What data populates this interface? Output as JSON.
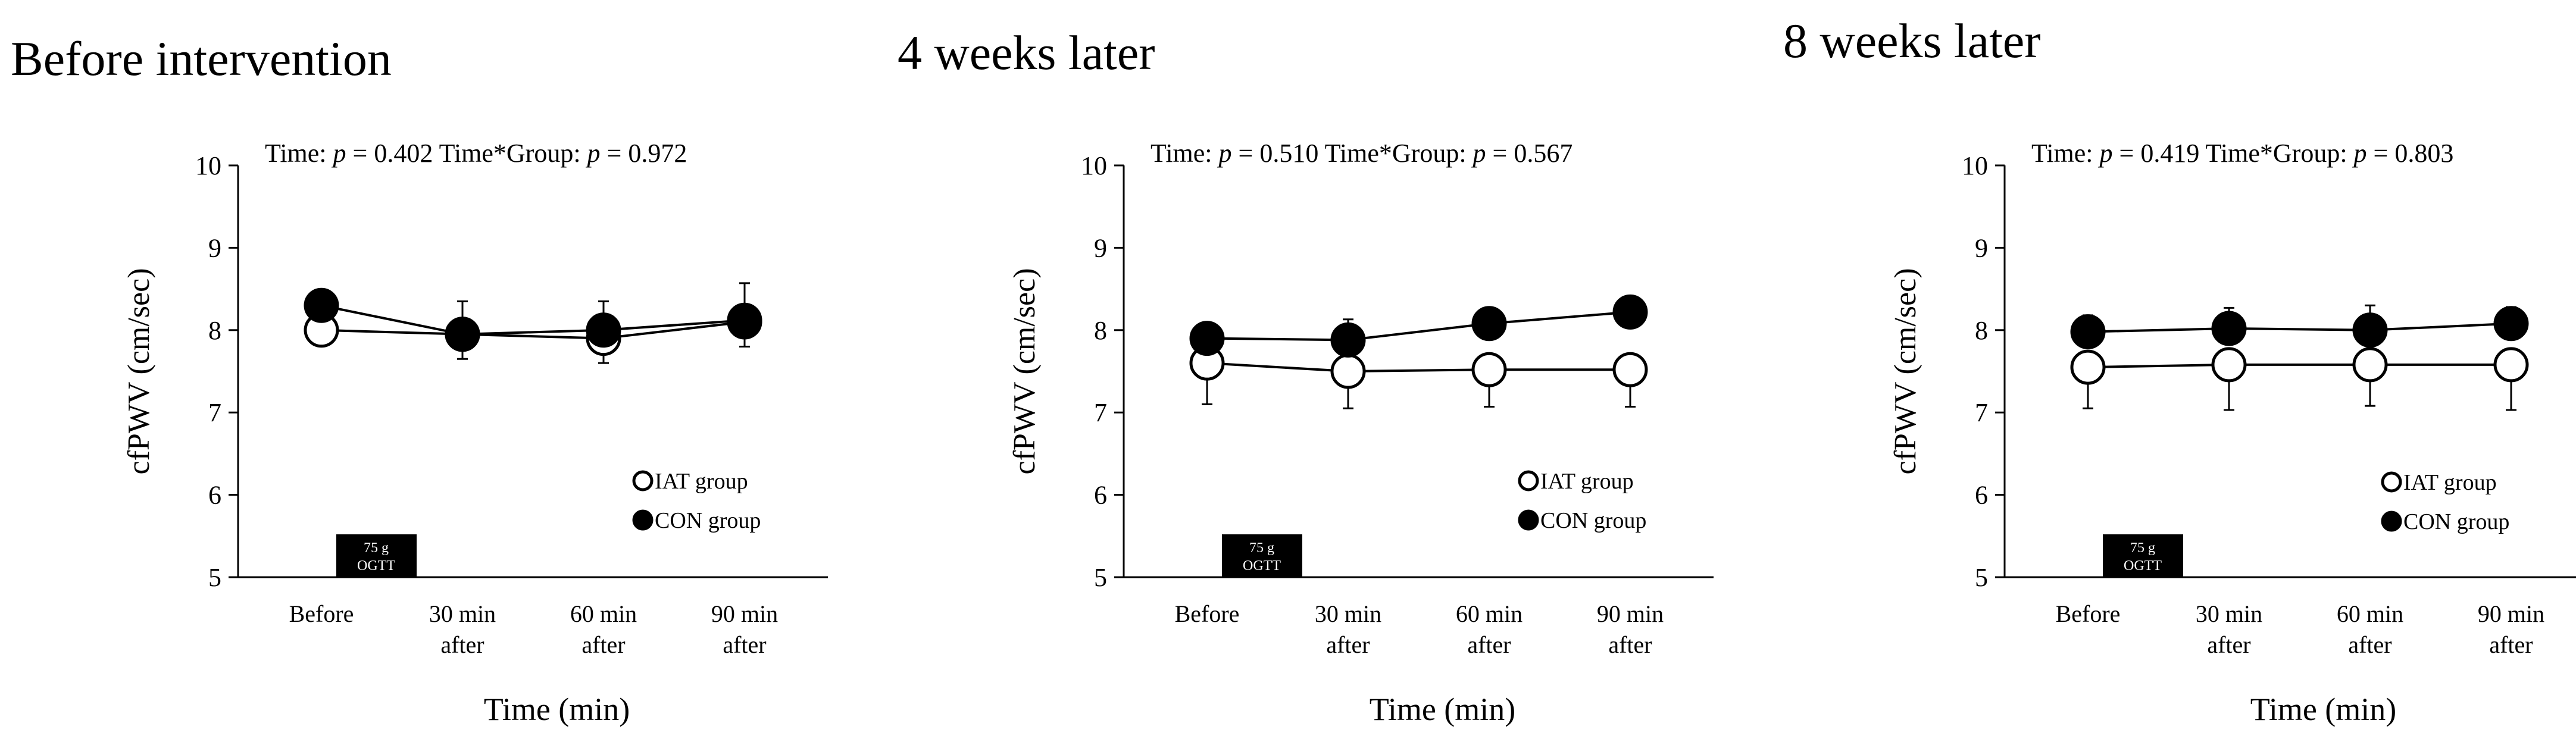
{
  "shared": {
    "ylabel": "cfPWV (cm/sec)",
    "xlabel": "Time (min)",
    "box_line1": "75 g",
    "box_line2": "OGTT",
    "legend": [
      "IAT group",
      "CON group"
    ],
    "stat_time_prefix": "Time: ",
    "stat_group_prefix": "Time*Group: ",
    "p_symbol": "p"
  },
  "chart_data": [
    {
      "type": "line",
      "title": "Before intervention",
      "stats": {
        "time_p": "= 0.402",
        "group_p": "= 0.972"
      },
      "categories": [
        "Before",
        "30 min after",
        "60 min after",
        "90 min after"
      ],
      "category_lines": [
        [
          "Before"
        ],
        [
          "30 min",
          "after"
        ],
        [
          "60 min",
          "after"
        ],
        [
          "90 min",
          "after"
        ]
      ],
      "ylim": [
        5,
        10
      ],
      "yticks": [
        5,
        6,
        7,
        8,
        9,
        10
      ],
      "series": [
        {
          "name": "IAT group",
          "marker": "open",
          "values": [
            8.0,
            7.95,
            7.9,
            8.1
          ],
          "err": [
            0,
            0.3,
            0.3,
            0.3
          ]
        },
        {
          "name": "CON group",
          "marker": "filled",
          "values": [
            8.3,
            7.95,
            8.0,
            8.12
          ],
          "err": [
            0,
            0.4,
            0.35,
            0.45
          ]
        }
      ]
    },
    {
      "type": "line",
      "title": "4 weeks later",
      "stats": {
        "time_p": "= 0.510",
        "group_p": "= 0.567"
      },
      "categories": [
        "Before",
        "30 min after",
        "60 min after",
        "90 min after"
      ],
      "category_lines": [
        [
          "Before"
        ],
        [
          "30 min",
          "after"
        ],
        [
          "60 min",
          "after"
        ],
        [
          "90 min",
          "after"
        ]
      ],
      "ylim": [
        5,
        10
      ],
      "yticks": [
        5,
        6,
        7,
        8,
        9,
        10
      ],
      "series": [
        {
          "name": "IAT group",
          "marker": "open",
          "values": [
            7.6,
            7.5,
            7.52,
            7.52
          ],
          "err": [
            0.5,
            0.45,
            0.45,
            0.45
          ]
        },
        {
          "name": "CON group",
          "marker": "filled",
          "values": [
            7.9,
            7.88,
            8.08,
            8.22
          ],
          "err": [
            0,
            0.25,
            0,
            0
          ]
        }
      ]
    },
    {
      "type": "line",
      "title": "8 weeks later",
      "stats": {
        "time_p": "= 0.419",
        "group_p": "= 0.803"
      },
      "categories": [
        "Before",
        "30 min after",
        "60 min after",
        "90 min after"
      ],
      "category_lines": [
        [
          "Before"
        ],
        [
          "30 min",
          "after"
        ],
        [
          "60 min",
          "after"
        ],
        [
          "90 min",
          "after"
        ]
      ],
      "ylim": [
        5,
        10
      ],
      "yticks": [
        5,
        6,
        7,
        8,
        9,
        10
      ],
      "series": [
        {
          "name": "IAT group",
          "marker": "open",
          "values": [
            7.55,
            7.58,
            7.58,
            7.58
          ],
          "err": [
            0.5,
            0.55,
            0.5,
            0.55
          ]
        },
        {
          "name": "CON group",
          "marker": "filled",
          "values": [
            7.98,
            8.02,
            8.0,
            8.08
          ],
          "err": [
            0.2,
            0.25,
            0.3,
            0.2
          ]
        }
      ]
    }
  ]
}
